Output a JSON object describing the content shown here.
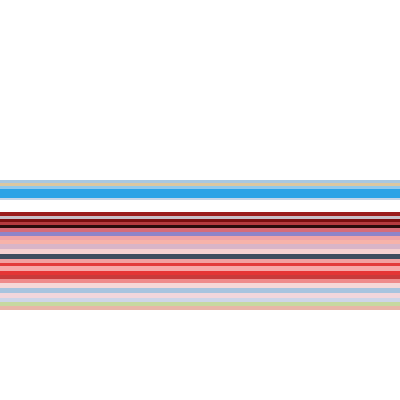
{
  "background": "#ffffff",
  "stripe_colors": [
    "#a8c8e0",
    "#dac7a0",
    "#8ec9ec",
    "#2aa3e6",
    "#2aa3e6",
    "#c4d6e8",
    "#ffffff",
    "#ffffff",
    "#9b1d1d",
    "#c8c0c8",
    "#7a0f10",
    "#b43a3f",
    "#2a0c0c",
    "#d66c7a",
    "#8f84c9",
    "#f0a4a8",
    "#f6b3aa",
    "#d8b5c8",
    "#f5d0d0",
    "#3e4c5e",
    "#f2a0a0",
    "#e33a3a",
    "#f7a8a8",
    "#e53535",
    "#c93a3a",
    "#ee8b8b",
    "#f5d8d8",
    "#a8c4df",
    "#f2d6dc",
    "#cdd5e8",
    "#c6d8a0",
    "#e8b6a8"
  ]
}
